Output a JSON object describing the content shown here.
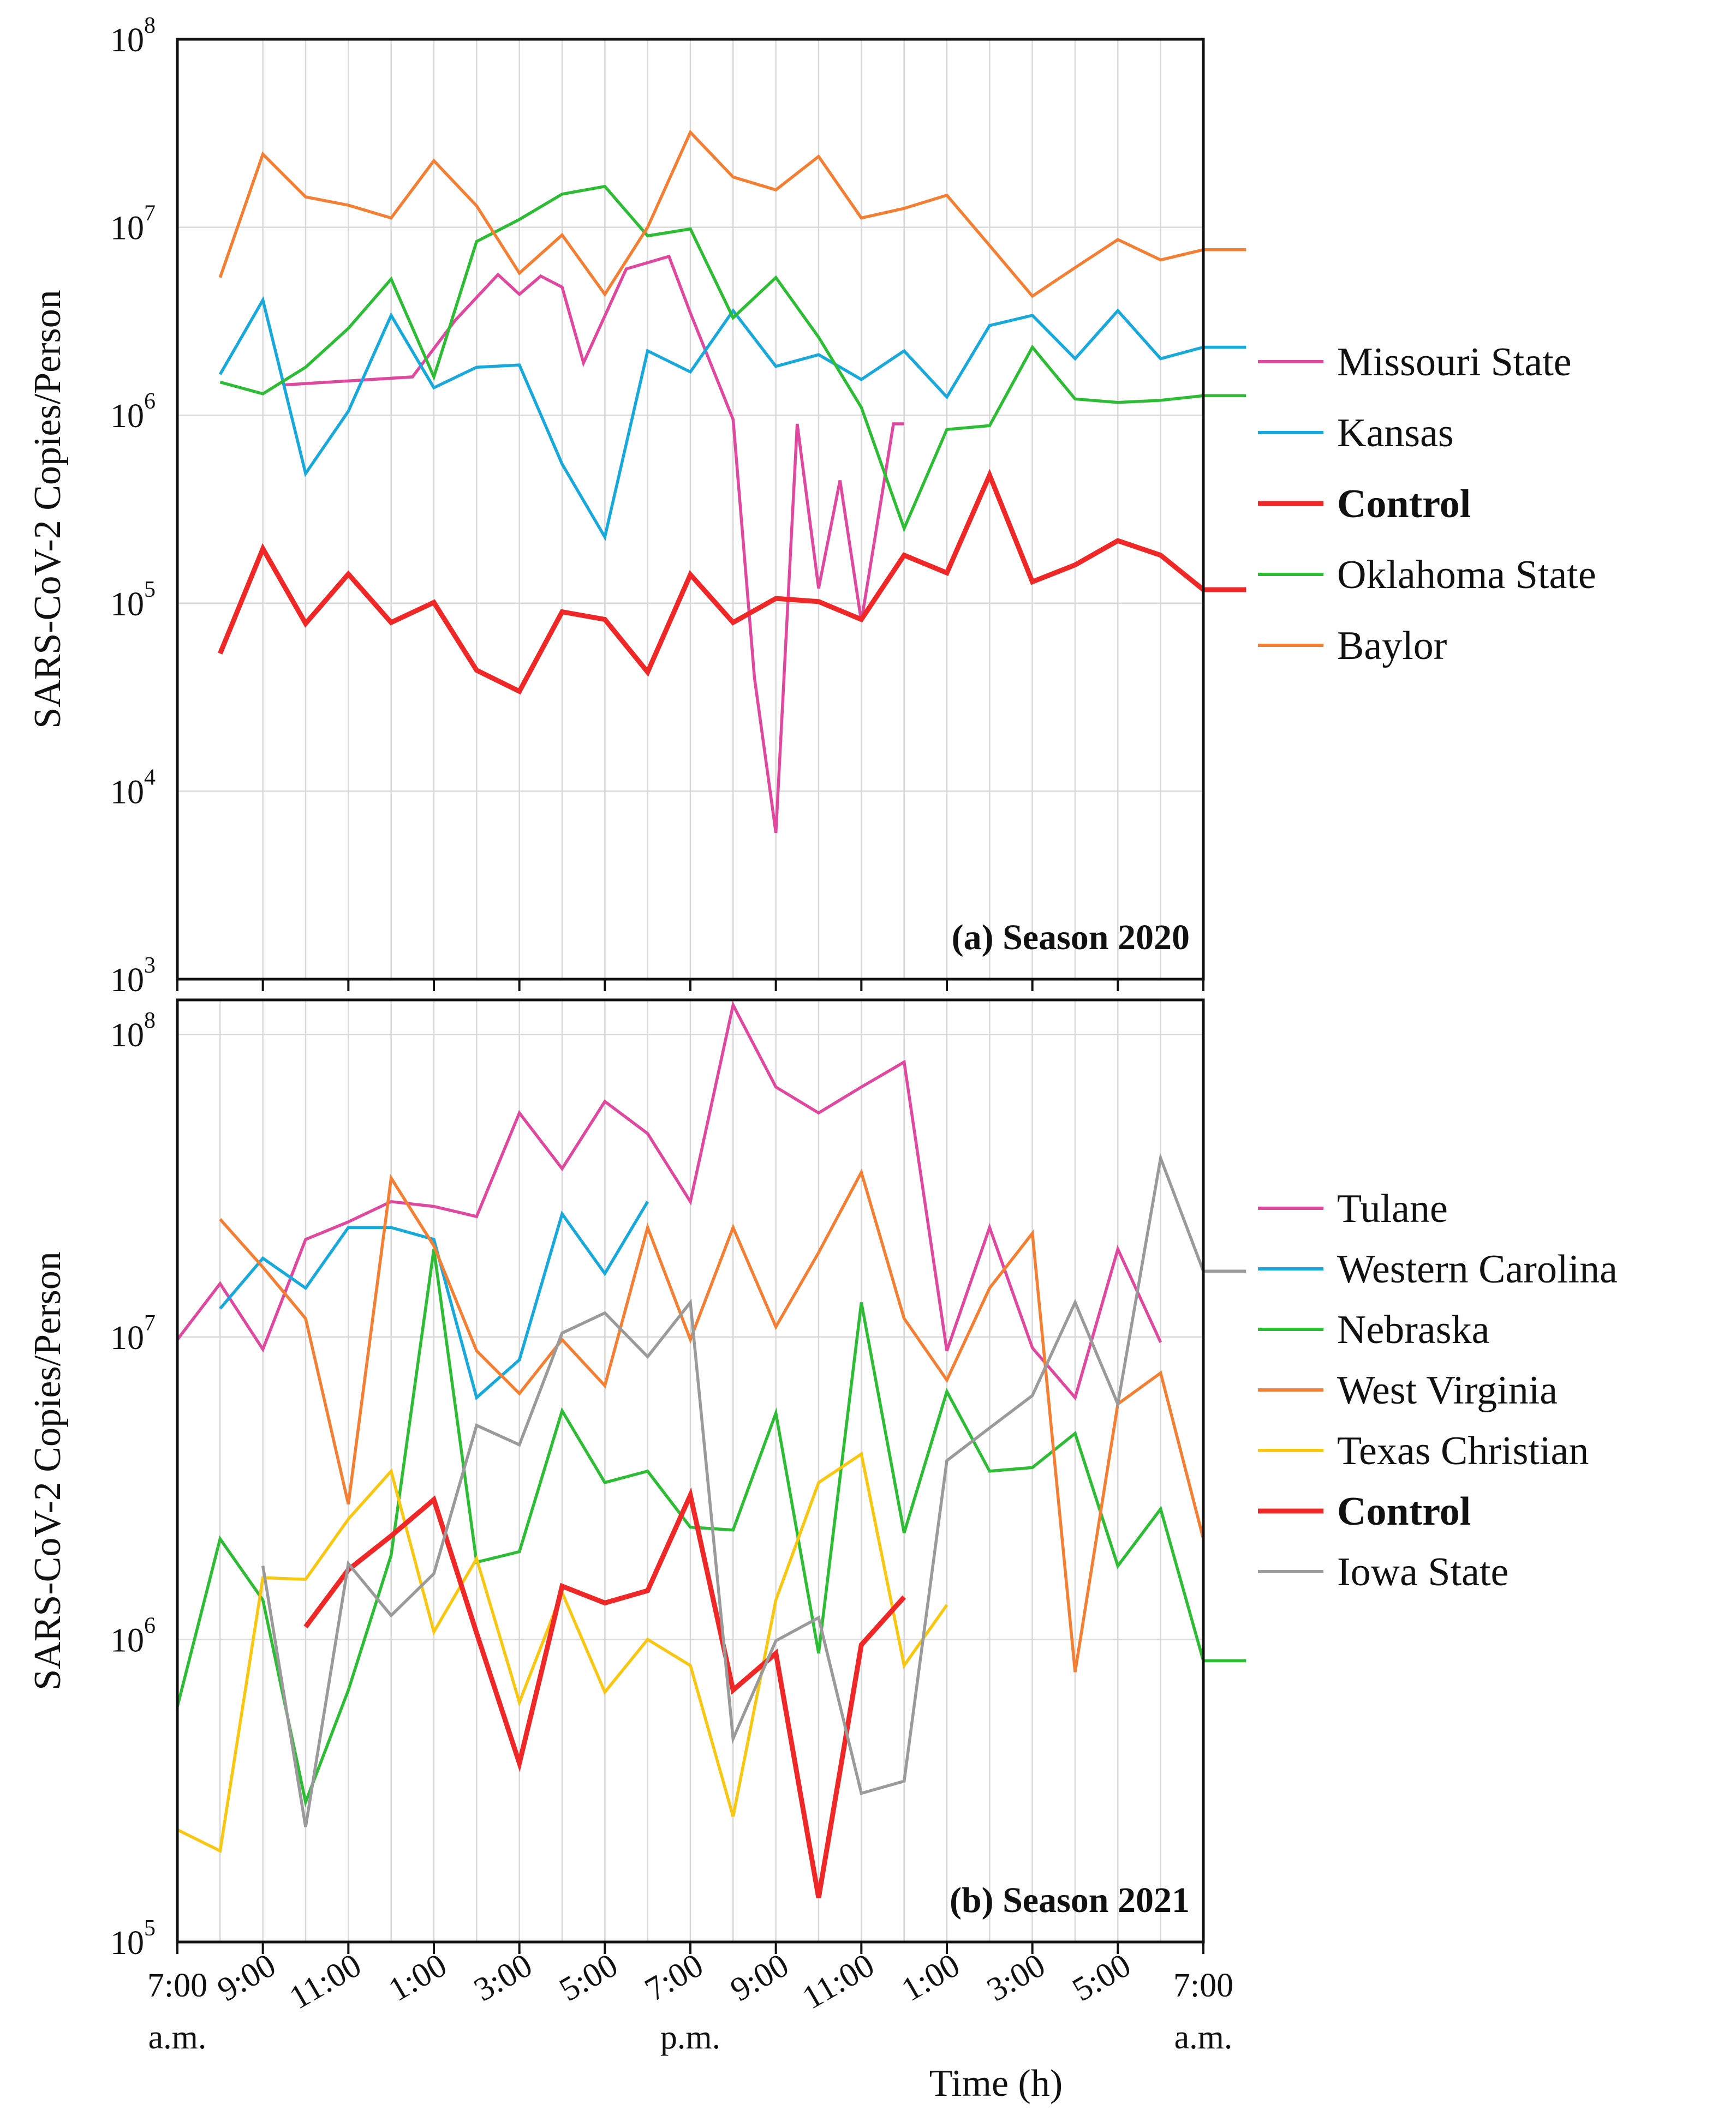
{
  "chart_data": [
    {
      "type": "line",
      "panel_label": "(a) Season 2020",
      "ylabel": "SARS-CoV-2 Copies/Person",
      "yscale": "log",
      "ylim": [
        1000,
        100000000
      ],
      "ytick_labels": [
        {
          "base": "10",
          "exp": "3"
        },
        {
          "base": "10",
          "exp": "4"
        },
        {
          "base": "10",
          "exp": "5"
        },
        {
          "base": "10",
          "exp": "6"
        },
        {
          "base": "10",
          "exp": "7"
        },
        {
          "base": "10",
          "exp": "8"
        }
      ],
      "x_hours_elapsed_range": [
        0,
        24
      ],
      "grid": true,
      "legend_position": "right",
      "series": [
        {
          "name": "Missouri State",
          "color": "#e0489f",
          "bold": false,
          "x": [
            1.5,
            4.5,
            5.5,
            6.5,
            7.0,
            7.5,
            8.0,
            8.5,
            9.5,
            10.5,
            11.0,
            12.0,
            12.5,
            13.0,
            13.5,
            14.0,
            14.5,
            15.0,
            15.5,
            15.75,
            16.0
          ],
          "y": [
            1450000,
            1600000,
            3200000,
            5600000,
            4400000,
            5500000,
            4800000,
            1900000,
            6000000,
            7000000,
            3500000,
            950000,
            40000,
            6000,
            900000,
            120000,
            450000,
            80000,
            400000,
            900000,
            900000
          ]
        },
        {
          "name": "Kansas",
          "color": "#17a9dc",
          "bold": false,
          "x": [
            0,
            1,
            2,
            3,
            4,
            5,
            6,
            7,
            8,
            9,
            10,
            11,
            12,
            13,
            14,
            15,
            16,
            17,
            18,
            19,
            20,
            21,
            22,
            23,
            24
          ],
          "y": [
            1650000,
            4100000,
            490000,
            1050000,
            3400000,
            1400000,
            1800000,
            1850000,
            550000,
            225000,
            2200000,
            1700000,
            3600000,
            1820000,
            2100000,
            1550000,
            2200000,
            1250000,
            3000000,
            3400000,
            2000000,
            3600000,
            2000000,
            2300000,
            2300000
          ]
        },
        {
          "name": "Control",
          "color": "#ef2727",
          "bold": true,
          "x": [
            0,
            1,
            2,
            3,
            4,
            5,
            6,
            7,
            8,
            9,
            10,
            11,
            12,
            13,
            14,
            15,
            16,
            17,
            18,
            19,
            20,
            21,
            22,
            23,
            24
          ],
          "y": [
            54000,
            195000,
            78000,
            143000,
            79000,
            101000,
            44000,
            34000,
            90000,
            82000,
            43000,
            142000,
            79000,
            106000,
            102000,
            82000,
            180000,
            145000,
            480000,
            130000,
            160000,
            215000,
            180000,
            118000,
            118000
          ]
        },
        {
          "name": "Oklahoma State",
          "color": "#2dbd35",
          "bold": false,
          "x": [
            0,
            1,
            2,
            3,
            4,
            5,
            6,
            7,
            8,
            9,
            10,
            11,
            12,
            13,
            14,
            15,
            16,
            17,
            18,
            19,
            20,
            21,
            22,
            23,
            24
          ],
          "y": [
            1500000,
            1300000,
            1800000,
            2900000,
            5300000,
            1600000,
            8400000,
            11000000,
            15000000,
            16500000,
            9000000,
            9800000,
            3300000,
            5400000,
            2600000,
            1100000,
            250000,
            840000,
            880000,
            2300000,
            1220000,
            1170000,
            1200000,
            1270000,
            1270000
          ]
        },
        {
          "name": "Baylor",
          "color": "#f47e32",
          "bold": false,
          "x": [
            0,
            1,
            2,
            3,
            4,
            5,
            6,
            7,
            8,
            9,
            10,
            11,
            12,
            13,
            14,
            15,
            16,
            17,
            18,
            19,
            20,
            21,
            22,
            23,
            24
          ],
          "y": [
            5400000,
            24500000,
            14500000,
            13100000,
            11200000,
            22600000,
            13000000,
            5700000,
            9100000,
            4400000,
            10000000,
            32000000,
            18500000,
            15800000,
            23800000,
            11200000,
            12600000,
            14800000,
            8000000,
            4300000,
            6100000,
            8600000,
            6700000,
            7600000,
            7600000
          ]
        }
      ]
    },
    {
      "type": "line",
      "panel_label": "(b) Season 2021",
      "ylabel": "SARS-CoV-2 Copies/Person",
      "xlabel": "Time (h)",
      "yscale": "log",
      "ylim": [
        100000,
        130000000
      ],
      "ytick_labels": [
        {
          "base": "10",
          "exp": "5"
        },
        {
          "base": "10",
          "exp": "6"
        },
        {
          "base": "10",
          "exp": "7"
        },
        {
          "base": "10",
          "exp": "8"
        }
      ],
      "x_hours_elapsed_range": [
        -1,
        24
      ],
      "xtick_labels": [
        "7:00",
        "9:00",
        "11:00",
        "1:00",
        "3:00",
        "5:00",
        "7:00",
        "9:00",
        "11:00",
        "1:00",
        "3:00",
        "5:00",
        "7:00"
      ],
      "xtick_sublabels": [
        "a.m.",
        "",
        "",
        "",
        "",
        "",
        "p.m.",
        "",
        "",
        "",
        "",
        "",
        "a.m."
      ],
      "grid": true,
      "legend_position": "right",
      "series": [
        {
          "name": "Tulane",
          "color": "#e0489f",
          "bold": false,
          "x": [
            -1,
            0,
            1,
            2,
            3,
            4,
            5,
            6,
            7,
            8,
            9,
            10,
            11,
            12,
            13,
            14,
            15,
            16,
            17,
            18,
            19,
            20,
            21,
            22
          ],
          "y": [
            9800000,
            15000000,
            9100000,
            21000000,
            24000000,
            28000000,
            27000000,
            25000000,
            55000000,
            36000000,
            60000000,
            47000000,
            28000000,
            125000000,
            67000000,
            55000000,
            67000000,
            81000000,
            9000000,
            23000000,
            9200000,
            6300000,
            19500000,
            9600000
          ]
        },
        {
          "name": "Western Carolina",
          "color": "#17a9dc",
          "bold": false,
          "x": [
            0,
            1,
            2,
            3,
            4,
            5,
            6,
            7,
            8,
            9,
            10
          ],
          "y": [
            12400000,
            18200000,
            14500000,
            23000000,
            23000000,
            21000000,
            6300000,
            8400000,
            25500000,
            16200000,
            28000000
          ]
        },
        {
          "name": "Nebraska",
          "color": "#2dbd35",
          "bold": false,
          "x": [
            -1,
            0,
            1,
            2,
            3,
            4,
            5,
            6,
            7,
            8,
            9,
            10,
            11,
            12,
            13,
            14,
            15,
            16,
            17,
            18,
            19,
            20,
            21,
            22,
            23,
            24
          ],
          "y": [
            600000,
            2150000,
            1350000,
            290000,
            680000,
            1900000,
            19500000,
            1800000,
            1950000,
            5700000,
            3300000,
            3600000,
            2350000,
            2300000,
            5600000,
            900000,
            13000000,
            2250000,
            6600000,
            3600000,
            3700000,
            4800000,
            1750000,
            2700000,
            850000,
            850000
          ]
        },
        {
          "name": "West Virginia",
          "color": "#f47e32",
          "bold": false,
          "x": [
            0,
            1,
            2,
            3,
            4,
            5,
            6,
            7,
            8,
            9,
            10,
            11,
            12,
            13,
            14,
            15,
            16,
            17,
            18,
            19,
            20,
            21,
            22,
            23
          ],
          "y": [
            24500000,
            17000000,
            11500000,
            2800000,
            33500000,
            20000000,
            9000000,
            6500000,
            9800000,
            6900000,
            23000000,
            9800000,
            23000000,
            10800000,
            19000000,
            35000000,
            11500000,
            7200000,
            14500000,
            22000000,
            780000,
            6000000,
            7600000,
            2150000
          ]
        },
        {
          "name": "Texas Christian",
          "color": "#f9c70f",
          "bold": false,
          "x": [
            -1,
            0,
            1,
            2,
            3,
            4,
            5,
            6,
            7,
            8,
            9,
            10,
            11,
            12,
            13,
            14,
            15,
            16,
            17
          ],
          "y": [
            235000,
            200000,
            1600000,
            1580000,
            2500000,
            3600000,
            1060000,
            1850000,
            620000,
            1430000,
            670000,
            1000000,
            820000,
            260000,
            1350000,
            3300000,
            4100000,
            820000,
            1300000
          ]
        },
        {
          "name": "Control",
          "color": "#ef2727",
          "bold": true,
          "x": [
            2,
            3,
            4,
            5,
            6,
            7,
            8,
            9,
            10,
            11,
            12,
            13,
            14,
            15,
            16
          ],
          "y": [
            1100000,
            1700000,
            2200000,
            2900000,
            1050000,
            390000,
            1500000,
            1320000,
            1450000,
            3000000,
            680000,
            900000,
            140000,
            960000,
            1380000
          ]
        },
        {
          "name": "Iowa State",
          "color": "#9a9a9a",
          "bold": false,
          "x": [
            1,
            2,
            3,
            4,
            5,
            6,
            7,
            8,
            9,
            10,
            11,
            12,
            13,
            14,
            15,
            16,
            17,
            18,
            19,
            20,
            21,
            22,
            23,
            24
          ],
          "y": [
            1750000,
            240000,
            1780000,
            1200000,
            1650000,
            5100000,
            4400000,
            10300000,
            12000000,
            8600000,
            13000000,
            470000,
            990000,
            1180000,
            310000,
            340000,
            3900000,
            5000000,
            6400000,
            13000000,
            6000000,
            39000000,
            16500000,
            16500000
          ]
        }
      ]
    }
  ]
}
